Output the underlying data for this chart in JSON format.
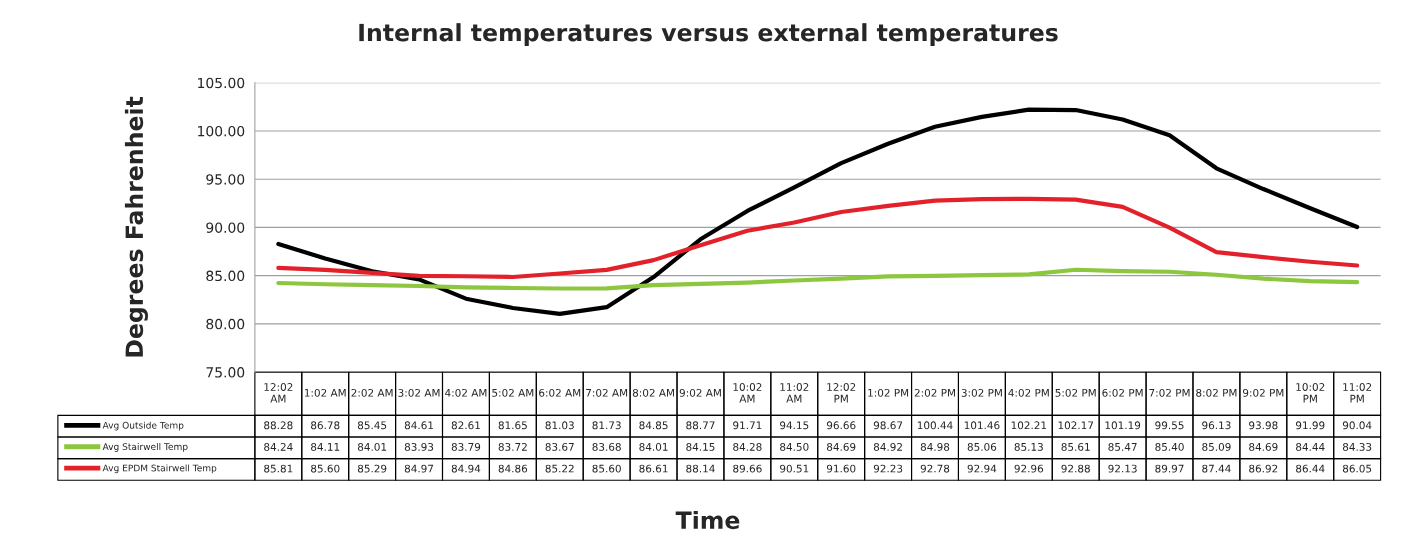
{
  "chart_data": {
    "type": "line",
    "title": "Internal temperatures versus external temperatures",
    "xlabel": "Time",
    "ylabel": "Degrees Fahrenheit",
    "categories": [
      "12:02 AM",
      "1:02 AM",
      "2:02 AM",
      "3:02 AM",
      "4:02 AM",
      "5:02 AM",
      "6:02 AM",
      "7:02 AM",
      "8:02 AM",
      "9:02 AM",
      "10:02 AM",
      "11:02 AM",
      "12:02 PM",
      "1:02 PM",
      "2:02 PM",
      "3:02 PM",
      "4:02 PM",
      "5:02 PM",
      "6:02 PM",
      "7:02 PM",
      "8:02 PM",
      "9:02 PM",
      "10:02 PM",
      "11:02 PM"
    ],
    "series": [
      {
        "name": "Avg Outside Temp",
        "color": "#000000",
        "values": [
          88.28,
          86.78,
          85.45,
          84.61,
          82.61,
          81.65,
          81.03,
          81.73,
          84.85,
          88.77,
          91.71,
          94.15,
          96.66,
          98.67,
          100.44,
          101.46,
          102.21,
          102.17,
          101.19,
          99.55,
          96.13,
          93.98,
          91.99,
          90.04
        ],
        "value_labels": [
          "88.28",
          "86.78",
          "85.45",
          "84.61",
          "82.61",
          "81.65",
          "81.03",
          "81.73",
          "84.85",
          "88.77",
          "91.71",
          "94.15",
          "96.66",
          "98.67",
          "100.44",
          "101.46",
          "102.21",
          "102.17",
          "101.19",
          "99.55",
          "96.13",
          "93.98",
          "91.99",
          "90.04"
        ]
      },
      {
        "name": "Avg Stairwell Temp",
        "color": "#8dc63f",
        "values": [
          84.24,
          84.11,
          84.01,
          83.93,
          83.79,
          83.72,
          83.67,
          83.68,
          84.01,
          84.15,
          84.28,
          84.5,
          84.69,
          84.92,
          84.98,
          85.06,
          85.13,
          85.61,
          85.47,
          85.4,
          85.09,
          84.69,
          84.44,
          84.33
        ],
        "value_labels": [
          "84.24",
          "84.11",
          "84.01",
          "83.93",
          "83.79",
          "83.72",
          "83.67",
          "83.68",
          "84.01",
          "84.15",
          "84.28",
          "84.50",
          "84.69",
          "84.92",
          "84.98",
          "85.06",
          "85.13",
          "85.61",
          "85.47",
          "85.40",
          "85.09",
          "84.69",
          "84.44",
          "84.33"
        ]
      },
      {
        "name": "Avg EPDM Stairwell Temp",
        "color": "#e3212b",
        "values": [
          85.81,
          85.6,
          85.29,
          84.97,
          84.94,
          84.86,
          85.22,
          85.6,
          86.61,
          88.14,
          89.66,
          90.51,
          91.6,
          92.23,
          92.78,
          92.94,
          92.96,
          92.88,
          92.13,
          89.97,
          87.44,
          86.92,
          86.44,
          86.05
        ],
        "value_labels": [
          "85.81",
          "85.60",
          "85.29",
          "84.97",
          "84.94",
          "84.86",
          "85.22",
          "85.60",
          "86.61",
          "88.14",
          "89.66",
          "90.51",
          "91.60",
          "92.23",
          "92.78",
          "92.94",
          "92.96",
          "92.88",
          "92.13",
          "89.97",
          "87.44",
          "86.92",
          "86.44",
          "86.05"
        ]
      }
    ],
    "ylim": [
      75,
      105
    ],
    "yticks": [
      {
        "value": 75,
        "label": "75.00"
      },
      {
        "value": 80,
        "label": "80.00"
      },
      {
        "value": 85,
        "label": "85.00"
      },
      {
        "value": 90,
        "label": "90.00"
      },
      {
        "value": 95,
        "label": "95.00"
      },
      {
        "value": 100,
        "label": "100.00"
      },
      {
        "value": 105,
        "label": "105.00"
      }
    ],
    "grid": "y",
    "legend": "bottom",
    "marker": "none",
    "line_style": "solid"
  }
}
